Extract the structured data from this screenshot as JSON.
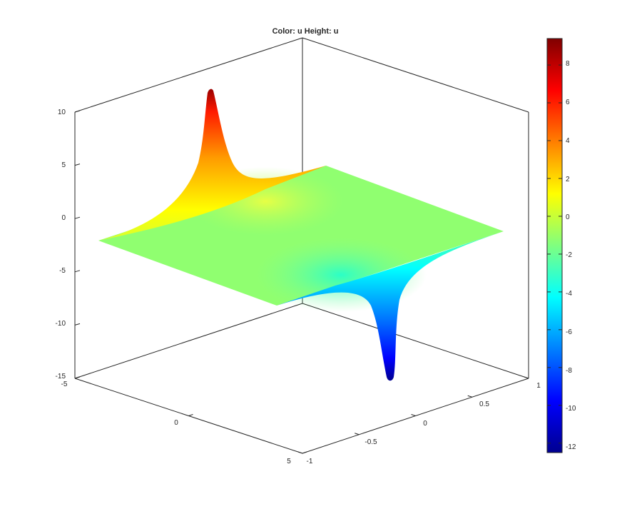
{
  "chart_data": {
    "type": "surface",
    "title": "Color: u  Height: u",
    "x_axis": {
      "range": [
        -5,
        5
      ],
      "ticks": [
        "-5",
        "0",
        "5"
      ]
    },
    "y_axis": {
      "range": [
        -1,
        1
      ],
      "ticks": [
        "-1",
        "-0.5",
        "0",
        "0.5",
        "1"
      ]
    },
    "z_axis": {
      "range": [
        -15,
        10
      ],
      "ticks": [
        "10",
        "5",
        "0",
        "-5",
        "-10",
        "-15"
      ]
    },
    "colorbar": {
      "colormap": "jet",
      "range": [
        -12.5,
        9.4
      ],
      "ticks": [
        "8",
        "6",
        "4",
        "2",
        "0",
        "-2",
        "-4",
        "-6",
        "-8",
        "-10",
        "-12"
      ]
    },
    "surface": {
      "flat_level": -1.5,
      "peak": {
        "value": 9.4
      },
      "trough": {
        "value": -12.5
      }
    },
    "grid": false,
    "box": true
  }
}
